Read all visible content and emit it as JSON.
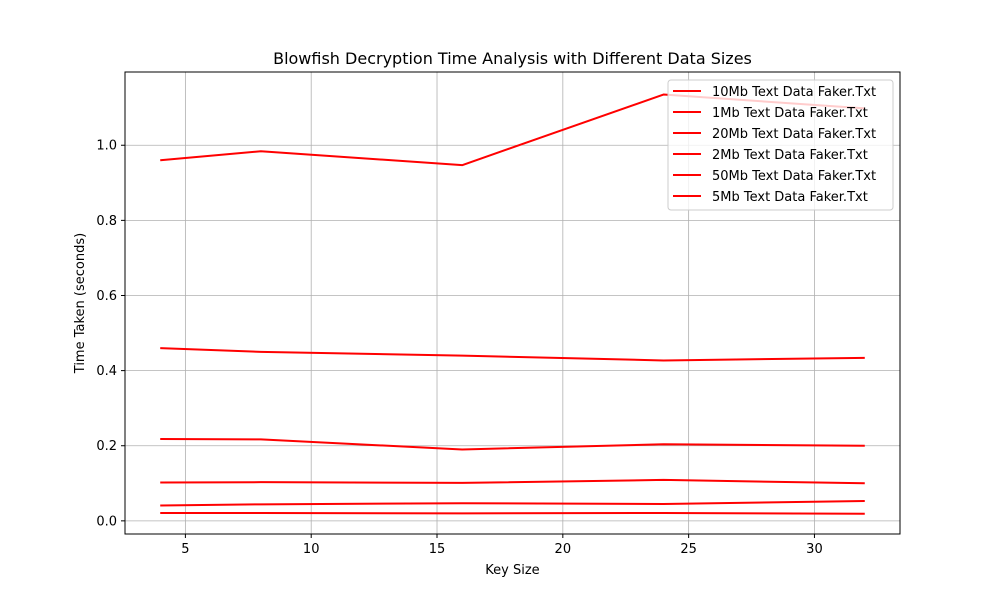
{
  "chart_data": {
    "type": "line",
    "title": "Blowfish Decryption Time Analysis with Different Data Sizes",
    "xlabel": "Key Size",
    "ylabel": "Time Taken (seconds)",
    "xlim": [
      2.6,
      33.4
    ],
    "ylim": [
      -0.035,
      1.195
    ],
    "xticks": [
      5,
      10,
      15,
      20,
      25,
      30
    ],
    "yticks": [
      0.0,
      0.2,
      0.4,
      0.6,
      0.8,
      1.0
    ],
    "grid": true,
    "legend_position": "top-right",
    "line_color": "#ff0000",
    "x": [
      4,
      8,
      16,
      24,
      32
    ],
    "series": [
      {
        "name": "10Mb Text Data Faker.Txt",
        "values": [
          0.96,
          0.984,
          0.947,
          1.135,
          1.098
        ]
      },
      {
        "name": "1Mb Text Data Faker.Txt",
        "values": [
          0.021,
          0.021,
          0.02,
          0.021,
          0.019
        ]
      },
      {
        "name": "20Mb Text Data Faker.Txt",
        "values": [
          0.46,
          0.45,
          0.44,
          0.427,
          0.434
        ]
      },
      {
        "name": "2Mb Text Data Faker.Txt",
        "values": [
          0.041,
          0.044,
          0.047,
          0.045,
          0.053
        ]
      },
      {
        "name": "50Mb Text Data Faker.Txt",
        "values": [
          0.218,
          0.217,
          0.19,
          0.204,
          0.2
        ]
      },
      {
        "name": "5Mb Text Data Faker.Txt",
        "values": [
          0.102,
          0.103,
          0.101,
          0.109,
          0.1
        ]
      }
    ]
  }
}
